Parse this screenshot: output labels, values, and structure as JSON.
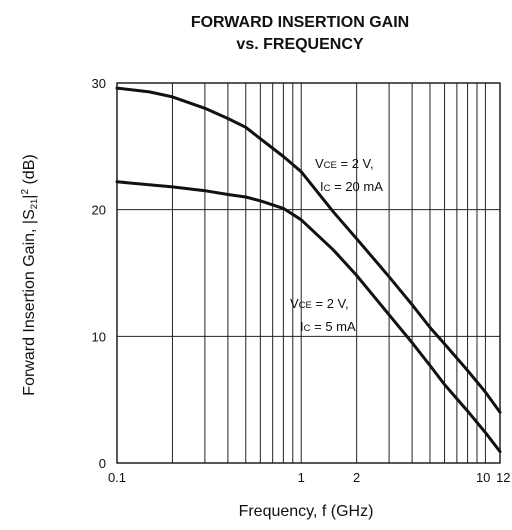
{
  "chart_data": {
    "type": "line",
    "title_line1": "FORWARD INSERTION GAIN",
    "title_line2": "vs. FREQUENCY",
    "xlabel": "Frequency, f (GHz)",
    "ylabel": {
      "prefix": "Forward Insertion Gain, |S",
      "subscript": "21",
      "middle": "|",
      "superscript": "2",
      "suffix": " (dB)"
    },
    "x_scale": "log",
    "xlim": [
      0.1,
      12
    ],
    "ylim": [
      0,
      30
    ],
    "x_ticks": [
      {
        "value": 0.1,
        "label": "0.1"
      },
      {
        "value": 1,
        "label": "1"
      },
      {
        "value": 2,
        "label": "2"
      },
      {
        "value": 10,
        "label": "10"
      },
      {
        "value": 12,
        "label": "12"
      }
    ],
    "y_ticks": [
      {
        "value": 0,
        "label": "0"
      },
      {
        "value": 10,
        "label": "10"
      },
      {
        "value": 20,
        "label": "20"
      },
      {
        "value": 30,
        "label": "30"
      }
    ],
    "grid": true,
    "series": [
      {
        "x": [
          0.1,
          0.15,
          0.2,
          0.3,
          0.4,
          0.5,
          0.6,
          0.8,
          1.0,
          1.5,
          2.0,
          3.0,
          4.0,
          5.0,
          6.0,
          8.0,
          10.0,
          12.0
        ],
        "y": [
          29.6,
          29.3,
          28.9,
          28.0,
          27.2,
          26.5,
          25.6,
          24.2,
          23.0,
          19.8,
          17.7,
          14.7,
          12.5,
          10.7,
          9.4,
          7.3,
          5.6,
          4.0
        ]
      },
      {
        "x": [
          0.1,
          0.2,
          0.3,
          0.4,
          0.5,
          0.6,
          0.8,
          1.0,
          1.5,
          2.0,
          3.0,
          4.0,
          5.0,
          6.0,
          8.0,
          10.0,
          12.0
        ],
        "y": [
          22.2,
          21.8,
          21.5,
          21.2,
          21.0,
          20.7,
          20.1,
          19.2,
          16.8,
          14.8,
          11.7,
          9.5,
          7.7,
          6.2,
          4.1,
          2.4,
          0.9
        ]
      }
    ],
    "annotations": [
      {
        "line1": {
          "v": "V",
          "sub": "CE",
          "rest": " = 2 V,"
        },
        "line2": {
          "v": "I",
          "sub": "C",
          "rest": " = 20 mA"
        }
      },
      {
        "line1": {
          "v": "V",
          "sub": "CE",
          "rest": " = 2 V,"
        },
        "line2": {
          "v": "I",
          "sub": "C",
          "rest": " = 5 mA"
        }
      }
    ]
  }
}
